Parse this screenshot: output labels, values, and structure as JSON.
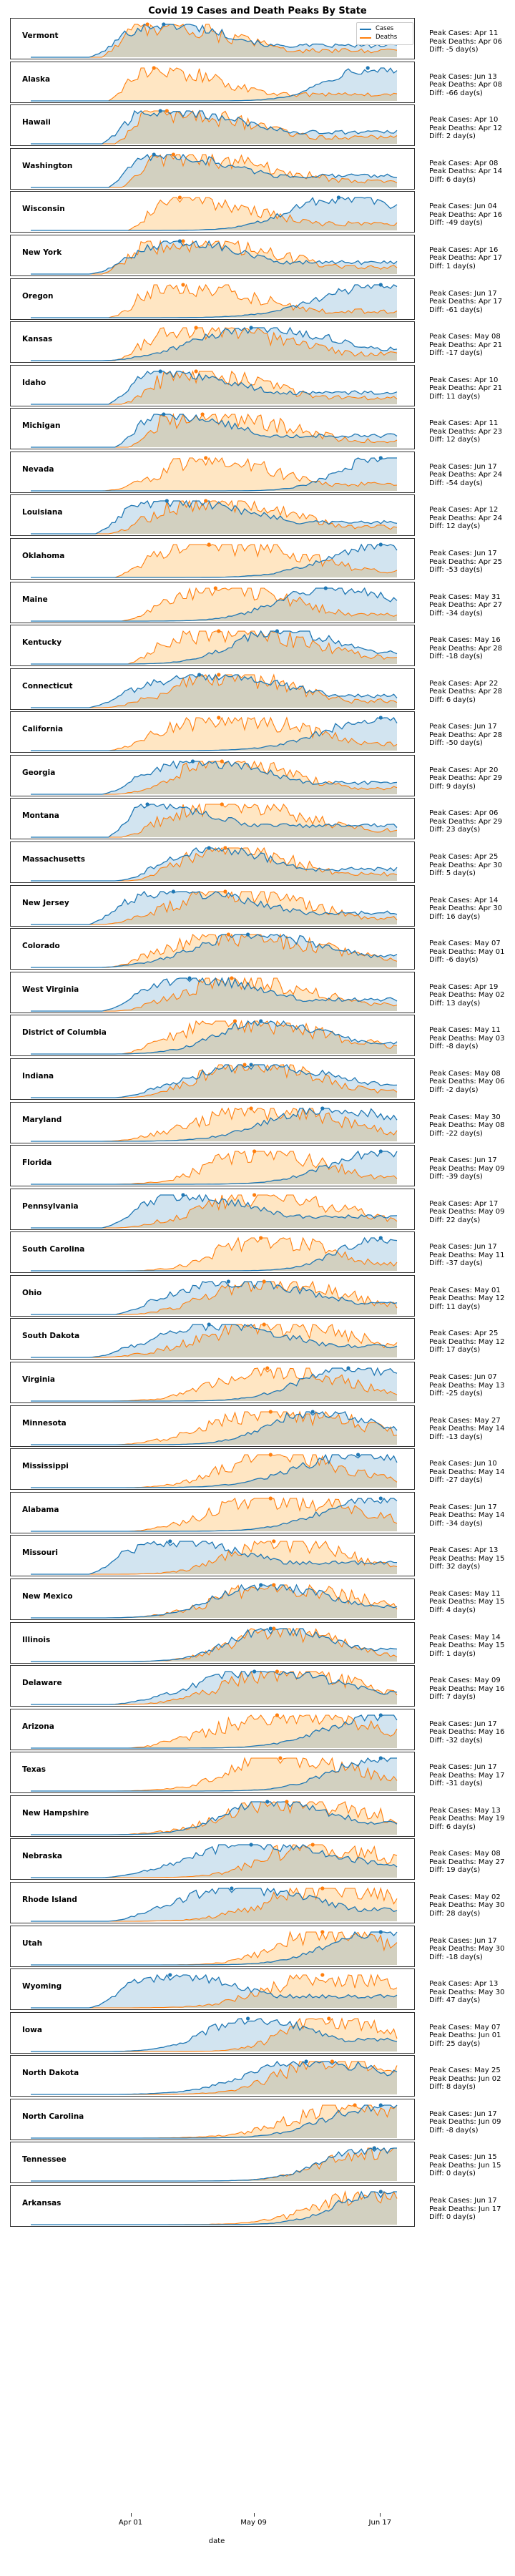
{
  "chart_data": {
    "type": "area",
    "title": "Covid 19 Cases and Death Peaks By State",
    "xlabel": "date",
    "x_ticks": [
      "Apr 01",
      "May 09",
      "Jun 17"
    ],
    "x_range": [
      "Mar 01",
      "Jun 22"
    ],
    "legend": {
      "placement": "top-right",
      "entries": [
        "Cases",
        "Deaths"
      ]
    },
    "series_colors": {
      "Cases": "#1f77b4",
      "Deaths": "#ff7f0e"
    },
    "info_labels": {
      "cases": "Peak Cases: ",
      "deaths": "Peak Deaths: ",
      "diff": "Diff: ",
      "diff_unit": " day(s)"
    },
    "panels": [
      {
        "state": "Vermont",
        "peak_cases": "Apr 11",
        "peak_deaths": "Apr 06",
        "diff": "-5"
      },
      {
        "state": "Alaska",
        "peak_cases": "Jun 13",
        "peak_deaths": "Apr 08",
        "diff": "-66"
      },
      {
        "state": "Hawaii",
        "peak_cases": "Apr 10",
        "peak_deaths": "Apr 12",
        "diff": "2"
      },
      {
        "state": "Washington",
        "peak_cases": "Apr 08",
        "peak_deaths": "Apr 14",
        "diff": "6"
      },
      {
        "state": "Wisconsin",
        "peak_cases": "Jun 04",
        "peak_deaths": "Apr 16",
        "diff": "-49"
      },
      {
        "state": "New York",
        "peak_cases": "Apr 16",
        "peak_deaths": "Apr 17",
        "diff": "1"
      },
      {
        "state": "Oregon",
        "peak_cases": "Jun 17",
        "peak_deaths": "Apr 17",
        "diff": "-61"
      },
      {
        "state": "Kansas",
        "peak_cases": "May 08",
        "peak_deaths": "Apr 21",
        "diff": "-17"
      },
      {
        "state": "Idaho",
        "peak_cases": "Apr 10",
        "peak_deaths": "Apr 21",
        "diff": "11"
      },
      {
        "state": "Michigan",
        "peak_cases": "Apr 11",
        "peak_deaths": "Apr 23",
        "diff": "12"
      },
      {
        "state": "Nevada",
        "peak_cases": "Jun 17",
        "peak_deaths": "Apr 24",
        "diff": "-54"
      },
      {
        "state": "Louisiana",
        "peak_cases": "Apr 12",
        "peak_deaths": "Apr 24",
        "diff": "12"
      },
      {
        "state": "Oklahoma",
        "peak_cases": "Jun 17",
        "peak_deaths": "Apr 25",
        "diff": "-53"
      },
      {
        "state": "Maine",
        "peak_cases": "May 31",
        "peak_deaths": "Apr 27",
        "diff": "-34"
      },
      {
        "state": "Kentucky",
        "peak_cases": "May 16",
        "peak_deaths": "Apr 28",
        "diff": "-18"
      },
      {
        "state": "Connecticut",
        "peak_cases": "Apr 22",
        "peak_deaths": "Apr 28",
        "diff": "6"
      },
      {
        "state": "California",
        "peak_cases": "Jun 17",
        "peak_deaths": "Apr 28",
        "diff": "-50"
      },
      {
        "state": "Georgia",
        "peak_cases": "Apr 20",
        "peak_deaths": "Apr 29",
        "diff": "9"
      },
      {
        "state": "Montana",
        "peak_cases": "Apr 06",
        "peak_deaths": "Apr 29",
        "diff": "23"
      },
      {
        "state": "Massachusetts",
        "peak_cases": "Apr 25",
        "peak_deaths": "Apr 30",
        "diff": "5"
      },
      {
        "state": "New Jersey",
        "peak_cases": "Apr 14",
        "peak_deaths": "Apr 30",
        "diff": "16"
      },
      {
        "state": "Colorado",
        "peak_cases": "May 07",
        "peak_deaths": "May 01",
        "diff": "-6"
      },
      {
        "state": "West Virginia",
        "peak_cases": "Apr 19",
        "peak_deaths": "May 02",
        "diff": "13"
      },
      {
        "state": "District of Columbia",
        "peak_cases": "May 11",
        "peak_deaths": "May 03",
        "diff": "-8"
      },
      {
        "state": "Indiana",
        "peak_cases": "May 08",
        "peak_deaths": "May 06",
        "diff": "-2"
      },
      {
        "state": "Maryland",
        "peak_cases": "May 30",
        "peak_deaths": "May 08",
        "diff": "-22"
      },
      {
        "state": "Florida",
        "peak_cases": "Jun 17",
        "peak_deaths": "May 09",
        "diff": "-39"
      },
      {
        "state": "Pennsylvania",
        "peak_cases": "Apr 17",
        "peak_deaths": "May 09",
        "diff": "22"
      },
      {
        "state": "South Carolina",
        "peak_cases": "Jun 17",
        "peak_deaths": "May 11",
        "diff": "-37"
      },
      {
        "state": "Ohio",
        "peak_cases": "May 01",
        "peak_deaths": "May 12",
        "diff": "11"
      },
      {
        "state": "South Dakota",
        "peak_cases": "Apr 25",
        "peak_deaths": "May 12",
        "diff": "17"
      },
      {
        "state": "Virginia",
        "peak_cases": "Jun 07",
        "peak_deaths": "May 13",
        "diff": "-25"
      },
      {
        "state": "Minnesota",
        "peak_cases": "May 27",
        "peak_deaths": "May 14",
        "diff": "-13"
      },
      {
        "state": "Mississippi",
        "peak_cases": "Jun 10",
        "peak_deaths": "May 14",
        "diff": "-27"
      },
      {
        "state": "Alabama",
        "peak_cases": "Jun 17",
        "peak_deaths": "May 14",
        "diff": "-34"
      },
      {
        "state": "Missouri",
        "peak_cases": "Apr 13",
        "peak_deaths": "May 15",
        "diff": "32"
      },
      {
        "state": "New Mexico",
        "peak_cases": "May 11",
        "peak_deaths": "May 15",
        "diff": "4"
      },
      {
        "state": "Illinois",
        "peak_cases": "May 14",
        "peak_deaths": "May 15",
        "diff": "1"
      },
      {
        "state": "Delaware",
        "peak_cases": "May 09",
        "peak_deaths": "May 16",
        "diff": "7"
      },
      {
        "state": "Arizona",
        "peak_cases": "Jun 17",
        "peak_deaths": "May 16",
        "diff": "-32"
      },
      {
        "state": "Texas",
        "peak_cases": "Jun 17",
        "peak_deaths": "May 17",
        "diff": "-31"
      },
      {
        "state": "New Hampshire",
        "peak_cases": "May 13",
        "peak_deaths": "May 19",
        "diff": "6"
      },
      {
        "state": "Nebraska",
        "peak_cases": "May 08",
        "peak_deaths": "May 27",
        "diff": "19"
      },
      {
        "state": "Rhode Island",
        "peak_cases": "May 02",
        "peak_deaths": "May 30",
        "diff": "28"
      },
      {
        "state": "Utah",
        "peak_cases": "Jun 17",
        "peak_deaths": "May 30",
        "diff": "-18"
      },
      {
        "state": "Wyoming",
        "peak_cases": "Apr 13",
        "peak_deaths": "May 30",
        "diff": "47"
      },
      {
        "state": "Iowa",
        "peak_cases": "May 07",
        "peak_deaths": "Jun 01",
        "diff": "25"
      },
      {
        "state": "North Dakota",
        "peak_cases": "May 25",
        "peak_deaths": "Jun 02",
        "diff": "8"
      },
      {
        "state": "North Carolina",
        "peak_cases": "Jun 17",
        "peak_deaths": "Jun 09",
        "diff": "-8"
      },
      {
        "state": "Tennessee",
        "peak_cases": "Jun 15",
        "peak_deaths": "Jun 15",
        "diff": "0"
      },
      {
        "state": "Arkansas",
        "peak_cases": "Jun 17",
        "peak_deaths": "Jun 17",
        "diff": "0"
      }
    ]
  }
}
